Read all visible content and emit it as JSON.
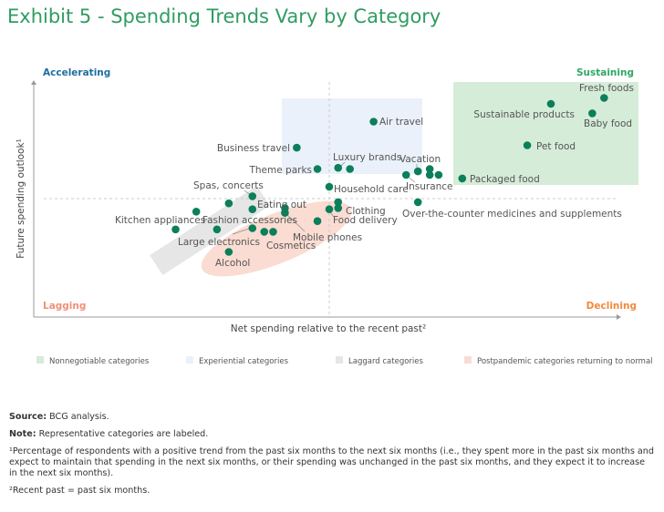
{
  "title": "Exhibit 5 - Spending Trends Vary by Category",
  "chart_data": {
    "type": "scatter",
    "xlabel": "Net spending relative to the recent past²",
    "ylabel": "Future spending outlook¹",
    "xlim": [
      -100,
      100
    ],
    "ylim": [
      -100,
      100
    ],
    "grid": false,
    "quadrants": {
      "top_left": "Accelerating",
      "top_right": "Sustaining",
      "bottom_left": "Lagging",
      "bottom_right": "Declining"
    },
    "quadrant_colors": {
      "Accelerating": "#1f6f9f",
      "Sustaining": "#2fa866",
      "Lagging": "#f0907a",
      "Declining": "#f08a3c"
    },
    "point_color": "#0a7f5a",
    "points": [
      {
        "label": "Business travel",
        "x": -11,
        "y": 43
      },
      {
        "label": "Theme parks",
        "x": -4,
        "y": 25
      },
      {
        "label": "Air travel",
        "x": 15,
        "y": 65
      },
      {
        "label": "Luxury brands",
        "x": 3,
        "y": 26
      },
      {
        "label": "",
        "x": 7,
        "y": 25
      },
      {
        "label": "Vacation",
        "x": 30,
        "y": 23
      },
      {
        "label": "",
        "x": 34,
        "y": 25
      },
      {
        "label": "",
        "x": 34,
        "y": 20
      },
      {
        "label": "",
        "x": 37,
        "y": 20
      },
      {
        "label": "Insurance",
        "x": 26,
        "y": 20
      },
      {
        "label": "Packaged food",
        "x": 45,
        "y": 17
      },
      {
        "label": "Sustainable products",
        "x": 75,
        "y": 80
      },
      {
        "label": "Fresh foods",
        "x": 93,
        "y": 85
      },
      {
        "label": "Baby food",
        "x": 89,
        "y": 72
      },
      {
        "label": "Pet food",
        "x": 67,
        "y": 45
      },
      {
        "label": "Household care",
        "x": 0,
        "y": 10
      },
      {
        "label": "Over-the-counter medicines and supplements",
        "x": 30,
        "y": -3
      },
      {
        "label": "Clothing",
        "x": 3,
        "y": -3
      },
      {
        "label": "",
        "x": 3,
        "y": -8
      },
      {
        "label": "Food delivery",
        "x": 0,
        "y": -9
      },
      {
        "label": "Mobile phones",
        "x": -4,
        "y": -19
      },
      {
        "label": "Eating out",
        "x": -15,
        "y": -8
      },
      {
        "label": "",
        "x": -15,
        "y": -12
      },
      {
        "label": "Spas, concerts",
        "x": -26,
        "y": 2
      },
      {
        "label": "",
        "x": -34,
        "y": -4
      },
      {
        "label": "",
        "x": -26,
        "y": -9
      },
      {
        "label": "",
        "x": -45,
        "y": -11
      },
      {
        "label": "Kitchen appliances",
        "x": -52,
        "y": -26
      },
      {
        "label": "Large electronics",
        "x": -38,
        "y": -26
      },
      {
        "label": "Fashion accessories",
        "x": -26,
        "y": -25
      },
      {
        "label": "Cosmetics",
        "x": -22,
        "y": -28
      },
      {
        "label": "",
        "x": -19,
        "y": -28
      },
      {
        "label": "Alcohol",
        "x": -34,
        "y": -45
      }
    ],
    "legend": [
      {
        "name": "Nonnegotiable categories",
        "color": "#d5ecd8"
      },
      {
        "name": "Experiential categories",
        "color": "#eaf1fb"
      },
      {
        "name": "Laggard categories",
        "color": "#e6e6e6"
      },
      {
        "name": "Postpandemic categories returning to normal",
        "color": "#fadcd2"
      }
    ]
  },
  "notes": {
    "source_label": "Source:",
    "source": " BCG analysis.",
    "note_label": "Note:",
    "note": " Representative categories are labeled.",
    "footnote1": "¹Percentage of respondents with a positive trend from the past six months to the next six months (i.e., they spent more in the past six months and expect to maintain that spending in the next six months, or their spending was unchanged in the past six months, and they expect it to increase in the next six months).",
    "footnote2": "²Recent past = past six months."
  }
}
